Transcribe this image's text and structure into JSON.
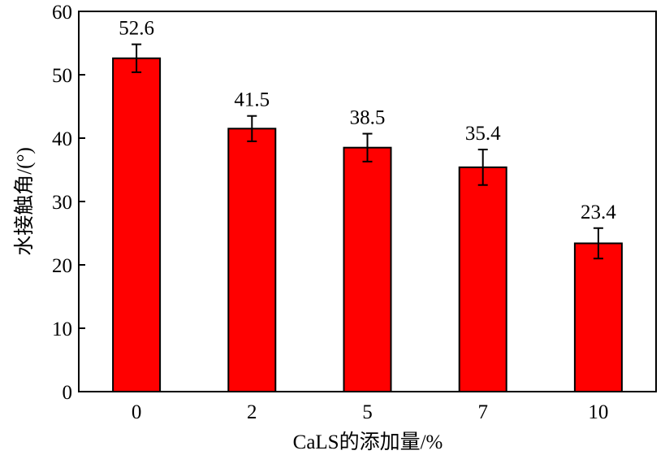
{
  "chart_data": {
    "type": "bar",
    "categories": [
      "0",
      "2",
      "5",
      "7",
      "10"
    ],
    "values": [
      52.6,
      41.5,
      38.5,
      35.4,
      23.4
    ],
    "error_bars": [
      2.2,
      2.0,
      2.2,
      2.8,
      2.4
    ],
    "data_labels": [
      "52.6",
      "41.5",
      "38.5",
      "35.4",
      "23.4"
    ],
    "xlabel": "CaLS的添加量/%",
    "ylabel": "水接触角/(°)",
    "ylim": [
      0,
      60
    ],
    "yticks": [
      0,
      10,
      20,
      30,
      40,
      50,
      60
    ],
    "grid": false,
    "legend": "none",
    "bar_color": "#ff0000",
    "edge_color": "#000000"
  }
}
